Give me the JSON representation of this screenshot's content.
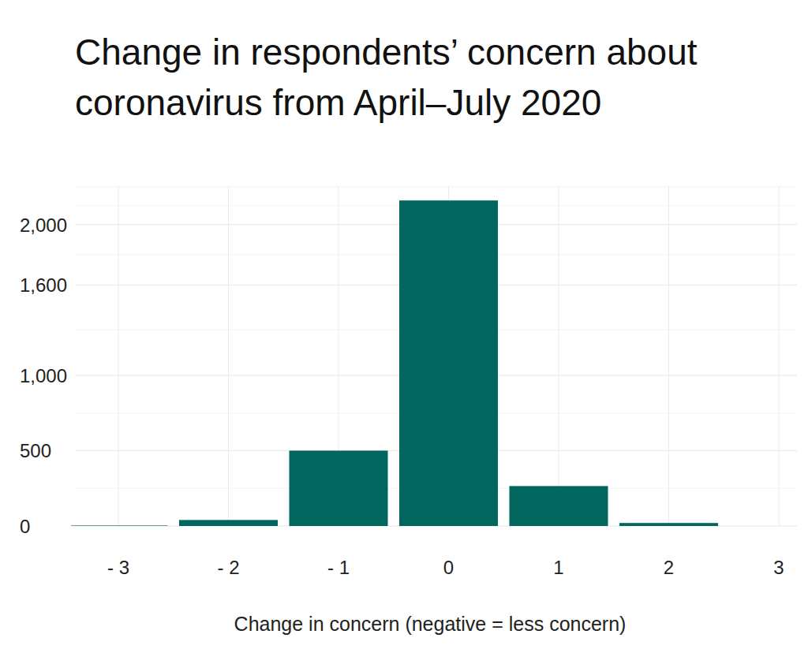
{
  "chart_data": {
    "type": "bar",
    "title": "Change in respondents’ concern about coronavirus from April–July 2020",
    "x_label": "Change in concern (negative = less concern)",
    "categories": [
      "- 3",
      "- 2",
      "- 1",
      "0",
      "1",
      "2",
      "3"
    ],
    "values": [
      3,
      40,
      500,
      2160,
      265,
      20,
      0
    ],
    "color": "#00665e",
    "ylim": [
      0,
      2250
    ],
    "yticks": [
      0,
      500,
      {
        "value": 1000,
        "label": "1,000"
      },
      {
        "value": 1600,
        "label": "1,600"
      },
      {
        "value": 2000,
        "label": "2,000"
      }
    ],
    "grid": true
  }
}
